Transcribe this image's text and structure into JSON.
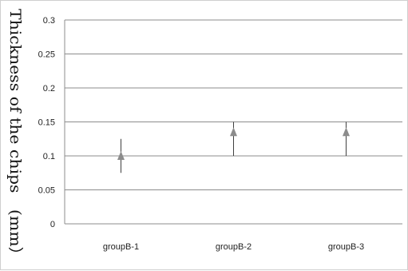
{
  "chart_data": {
    "type": "scatter",
    "title": "",
    "xlabel": "",
    "ylabel": "Thickness of the chips　(mm）",
    "categories": [
      "groupB-1",
      "groupB-2",
      "groupB-3"
    ],
    "series": [
      {
        "values": [
          0.1,
          0.135,
          0.135
        ],
        "err_low": [
          0.075,
          0.1,
          0.1
        ],
        "err_high": [
          0.125,
          0.15,
          0.15
        ]
      }
    ],
    "ylim": [
      0,
      0.3
    ],
    "yticks": [
      0,
      0.05,
      0.1,
      0.15,
      0.2,
      0.25,
      0.3
    ],
    "ytick_labels": [
      "0",
      "0.05",
      "0.1",
      "0.15",
      "0.2",
      "0.25",
      "0.3"
    ],
    "grid": true,
    "legend": "none",
    "colors": {
      "marker": "#8c8c8c",
      "error_bar": "#404040",
      "grid": "#8c8c8c",
      "axis": "#8c8c8c"
    },
    "marker_shape": "triangle-up"
  }
}
